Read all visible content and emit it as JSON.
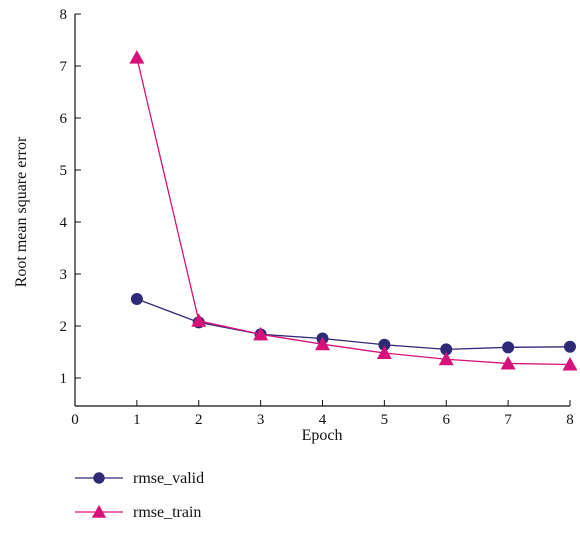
{
  "chart_data": {
    "type": "line",
    "title": "",
    "xlabel": "Epoch",
    "ylabel": "Root mean square error",
    "xlim": [
      0,
      8
    ],
    "ylim": [
      0.5,
      8
    ],
    "x_ticks": [
      "0",
      "1",
      "2",
      "3",
      "4",
      "5",
      "6",
      "7",
      "8"
    ],
    "y_ticks": [
      "1",
      "2",
      "3",
      "4",
      "5",
      "6",
      "7",
      "8"
    ],
    "grid": false,
    "legend_position": "bottom-left",
    "series": [
      {
        "name": "rmse_valid",
        "marker": "circle",
        "color": "#2e2a78",
        "x": [
          1,
          2,
          3,
          4,
          5,
          6,
          7,
          8
        ],
        "values": [
          2.52,
          2.07,
          1.84,
          1.76,
          1.64,
          1.55,
          1.59,
          1.6
        ]
      },
      {
        "name": "rmse_train",
        "marker": "triangle",
        "color": "#d6127a",
        "x": [
          1,
          2,
          3,
          4,
          5,
          6,
          7,
          8
        ],
        "values": [
          7.16,
          2.1,
          1.84,
          1.65,
          1.48,
          1.36,
          1.28,
          1.26
        ]
      }
    ]
  }
}
